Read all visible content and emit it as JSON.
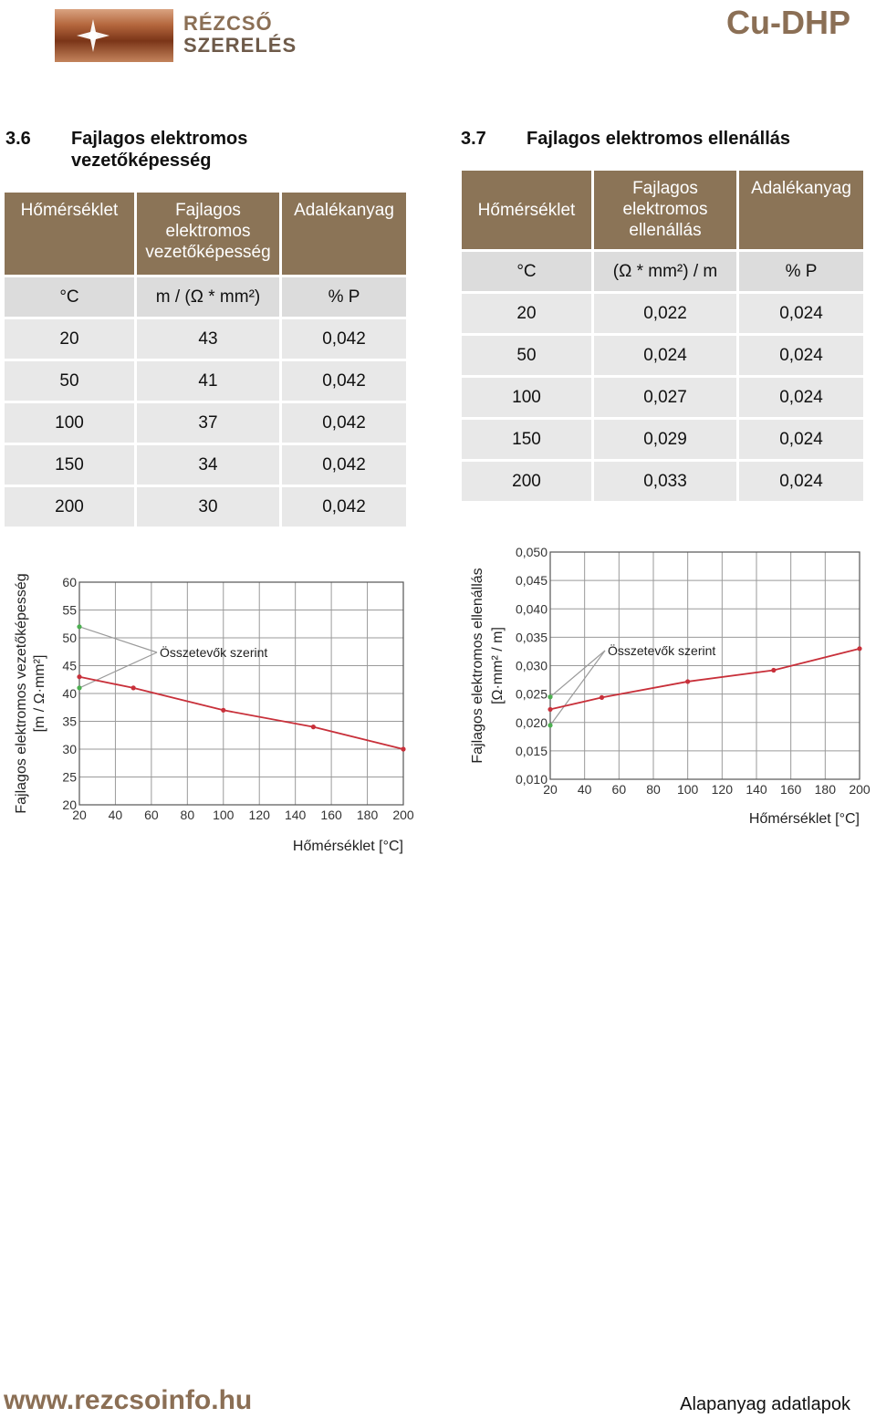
{
  "header": {
    "logo_line1": "RÉZCSŐ",
    "logo_line2": "SZERELÉS",
    "doc_code": "Cu-DHP"
  },
  "section1": {
    "number": "3.6",
    "title": "Fajlagos elektromos vezetőképesség",
    "table": {
      "headers": [
        "Hőmérséklet",
        "Fajlagos elektromos vezetőképesség",
        "Adalékanyag"
      ],
      "units": [
        "°C",
        "m / (Ω * mm²)",
        "% P"
      ],
      "rows": [
        [
          "20",
          "43",
          "0,042"
        ],
        [
          "50",
          "41",
          "0,042"
        ],
        [
          "100",
          "37",
          "0,042"
        ],
        [
          "150",
          "34",
          "0,042"
        ],
        [
          "200",
          "30",
          "0,042"
        ]
      ]
    }
  },
  "section2": {
    "number": "3.7",
    "title": "Fajlagos elektromos ellenállás",
    "table": {
      "headers": [
        "Hőmérséklet",
        "Fajlagos elektromos ellenállás",
        "Adalékanyag"
      ],
      "units": [
        "°C",
        "(Ω * mm²) / m",
        "% P"
      ],
      "rows": [
        [
          "20",
          "0,022",
          "0,024"
        ],
        [
          "50",
          "0,024",
          "0,024"
        ],
        [
          "100",
          "0,027",
          "0,024"
        ],
        [
          "150",
          "0,029",
          "0,024"
        ],
        [
          "200",
          "0,033",
          "0,024"
        ]
      ]
    }
  },
  "chart_data": [
    {
      "type": "line",
      "ylabel": "Fajlagos elektromos vezetőképesség",
      "ylabel_unit": "[m / Ω·mm²]",
      "xlabel": "Hőmérséklet [°C]",
      "xlim": [
        20,
        200
      ],
      "ylim": [
        20,
        60
      ],
      "xticks": [
        "20",
        "40",
        "60",
        "80",
        "100",
        "120",
        "140",
        "160",
        "180",
        "200"
      ],
      "yticks": [
        "20",
        "25",
        "30",
        "35",
        "40",
        "45",
        "50",
        "55",
        "60"
      ],
      "grid": true,
      "series": [
        {
          "x": [
            20,
            50,
            100,
            150,
            200
          ],
          "y": [
            43,
            41,
            37,
            34,
            30
          ],
          "color": "#c8303a"
        }
      ],
      "range_points": {
        "x": [
          20,
          20
        ],
        "y": [
          52,
          41
        ],
        "color": "#4caf50"
      },
      "annotation": "Összetevők szerint"
    },
    {
      "type": "line",
      "ylabel": "Fajlagos elektromos ellenállás",
      "ylabel_unit": "[Ω·mm² / m]",
      "xlabel": "Hőmérséklet [°C]",
      "xlim": [
        20,
        200
      ],
      "ylim": [
        0.01,
        0.05
      ],
      "xticks": [
        "20",
        "40",
        "60",
        "80",
        "100",
        "120",
        "140",
        "160",
        "180",
        "200"
      ],
      "yticks": [
        "0,010",
        "0,015",
        "0,020",
        "0,025",
        "0,030",
        "0,035",
        "0,040",
        "0,045",
        "0,050"
      ],
      "grid": true,
      "series": [
        {
          "x": [
            20,
            50,
            100,
            150,
            200
          ],
          "y": [
            0.0223,
            0.0244,
            0.0272,
            0.0292,
            0.033
          ],
          "color": "#c8303a"
        }
      ],
      "range_points": {
        "x": [
          20,
          20
        ],
        "y": [
          0.0245,
          0.0195
        ],
        "color": "#4caf50"
      },
      "annotation": "Összetevők szerint"
    }
  ],
  "footer": {
    "website": "www.rezcsoinfo.hu",
    "doc_type": "Alapanyag adatlapok"
  }
}
